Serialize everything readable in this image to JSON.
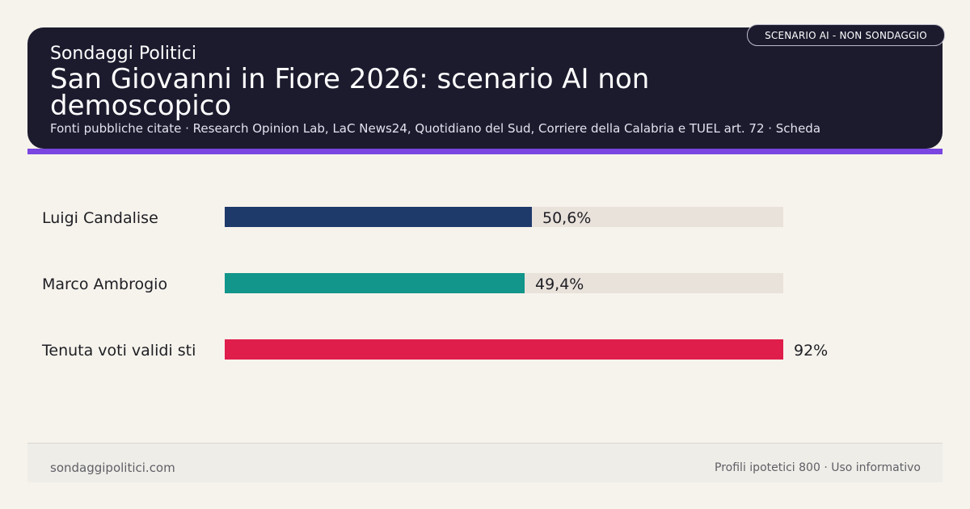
{
  "header": {
    "brand": "Sondaggi Politici",
    "title": "San Giovanni in Fiore 2026: scenario AI non demoscopico",
    "sources": "Fonti pubbliche citate · Research Opinion Lab, LaC News24, Quotidiano del Sud, Corriere della Calabria e TUEL art. 72 · Scheda",
    "badge": "SCENARIO AI - NON SONDAGGIO"
  },
  "colors": {
    "header_bg": "#1c1b2e",
    "accent": "#7a45e0",
    "track": "#e9e2db"
  },
  "chart_data": {
    "type": "bar",
    "orientation": "horizontal",
    "xlim": [
      0,
      92
    ],
    "grid": false,
    "categories": [
      "Luigi Candalise",
      "Marco Ambrogio",
      "Tenuta voti validi sti"
    ],
    "values": [
      50.6,
      49.4,
      92
    ],
    "value_labels": [
      "50,6%",
      "49,4%",
      "92%"
    ],
    "colors": [
      "#1e3a6b",
      "#12958a",
      "#e01e4b"
    ]
  },
  "footer": {
    "site": "sondaggipolitici.com",
    "note": "Profili ipotetici 800 · Uso informativo"
  }
}
